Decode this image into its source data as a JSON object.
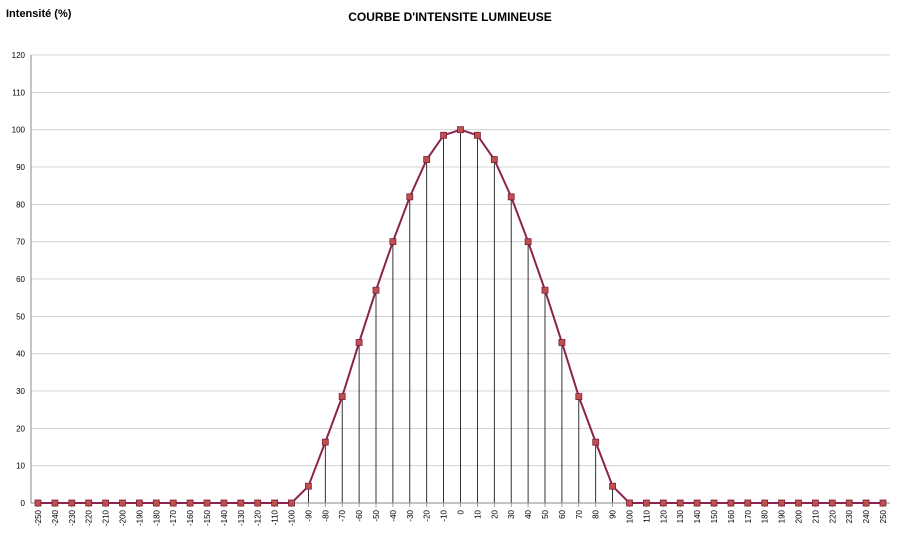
{
  "chart_data": {
    "type": "line",
    "title": "COURBE D'INTENSITE LUMINEUSE",
    "ylabel": "Intensité (%)",
    "xlabel": "",
    "ylim": [
      0,
      120
    ],
    "yticks": [
      0,
      10,
      20,
      30,
      40,
      50,
      60,
      70,
      80,
      90,
      100,
      110,
      120
    ],
    "grid": "horizontal",
    "drop_lines": true,
    "x": [
      -250,
      -240,
      -230,
      -220,
      -210,
      -200,
      -190,
      -180,
      -170,
      -160,
      -150,
      -140,
      -130,
      -120,
      -110,
      -100,
      -90,
      -80,
      -70,
      -60,
      -50,
      -40,
      -30,
      -20,
      -10,
      0,
      10,
      20,
      30,
      40,
      50,
      60,
      70,
      80,
      90,
      100,
      110,
      120,
      130,
      140,
      150,
      160,
      170,
      180,
      190,
      200,
      210,
      220,
      230,
      240,
      250
    ],
    "x_tick_labels": [
      "-250",
      "-240",
      "-230",
      "-220",
      "-210",
      "-200",
      "-190",
      "-180",
      "-170",
      "-160",
      "-150",
      "-140",
      "-130",
      "-120",
      "-110",
      "-100",
      "-90",
      "-80",
      "-70",
      "-60",
      "-50",
      "-40",
      "-30",
      "-20",
      "-10",
      "0",
      "10",
      "20",
      "30",
      "40",
      "50",
      "60",
      "70",
      "80",
      "90",
      "100",
      "110",
      "120",
      "130",
      "140",
      "150",
      "160",
      "170",
      "180",
      "190",
      "200",
      "210",
      "220",
      "230",
      "240",
      "250"
    ],
    "series": [
      {
        "values": [
          0,
          0,
          0,
          0,
          0,
          0,
          0,
          0,
          0,
          0,
          0,
          0,
          0,
          0,
          0,
          0,
          4.5,
          16.3,
          28.5,
          43,
          57,
          70,
          82,
          92,
          98.5,
          100,
          98.5,
          92,
          82,
          70,
          57,
          43,
          28.5,
          16.3,
          4.5,
          0,
          0,
          0,
          0,
          0,
          0,
          0,
          0,
          0,
          0,
          0,
          0,
          0,
          0,
          0,
          0
        ],
        "line_color": "#8b2252",
        "marker_color": "#c0504d"
      }
    ]
  }
}
